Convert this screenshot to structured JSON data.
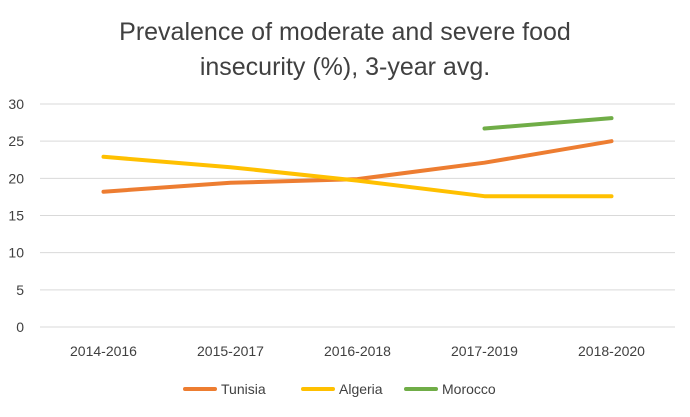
{
  "chart_data": {
    "type": "line",
    "title_lines": [
      "Prevalence of moderate and severe food",
      "insecurity (%), 3-year avg."
    ],
    "categories": [
      "2014-2016",
      "2015-2017",
      "2016-2018",
      "2017-2019",
      "2018-2020"
    ],
    "ylim": [
      0,
      30
    ],
    "yticks": [
      0,
      5,
      10,
      15,
      20,
      25,
      30
    ],
    "grid": true,
    "legend_position": "bottom",
    "series": [
      {
        "name": "Tunisia",
        "color": "#ED7D31",
        "values": [
          18.2,
          19.4,
          19.9,
          22.1,
          25.0
        ]
      },
      {
        "name": "Algeria",
        "color": "#FFC000",
        "values": [
          22.9,
          21.5,
          19.7,
          17.6,
          17.6
        ]
      },
      {
        "name": "Morocco",
        "color": "#70AD47",
        "values": [
          null,
          null,
          null,
          26.7,
          28.1
        ]
      }
    ]
  }
}
